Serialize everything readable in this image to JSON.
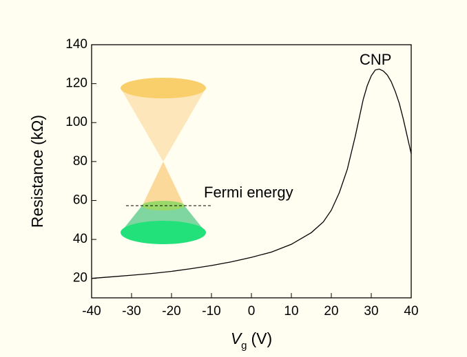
{
  "chart_data": {
    "type": "line",
    "y_label": "Resistance (kΩ)",
    "x_label": {
      "symbol": "V",
      "subscript": "g",
      "unit": "(V)"
    },
    "annotations": [
      "CNP",
      "Fermi energy"
    ],
    "x": [
      -40,
      -35,
      -30,
      -25,
      -20,
      -15,
      -10,
      -5,
      0,
      5,
      10,
      15,
      18,
      20,
      22,
      24,
      26,
      28,
      29,
      30,
      31,
      32,
      33,
      34,
      35,
      36,
      37,
      38,
      39,
      40
    ],
    "series": [
      {
        "color": "#000000",
        "values": [
          20,
          20.8,
          21.6,
          22.5,
          23.6,
          25,
          26.6,
          28.5,
          30.8,
          33.5,
          37.5,
          43.5,
          49,
          55,
          64,
          76,
          93,
          112,
          119,
          124,
          127,
          127.5,
          126.5,
          124.5,
          121,
          116,
          110,
          102,
          93,
          84
        ]
      }
    ],
    "xlim": [
      -40,
      40
    ],
    "xticks": [
      -40,
      -30,
      -20,
      -10,
      0,
      10,
      20,
      30,
      40
    ],
    "ylim": [
      10,
      140
    ],
    "yticks": [
      20,
      40,
      60,
      80,
      100,
      120,
      140
    ]
  }
}
